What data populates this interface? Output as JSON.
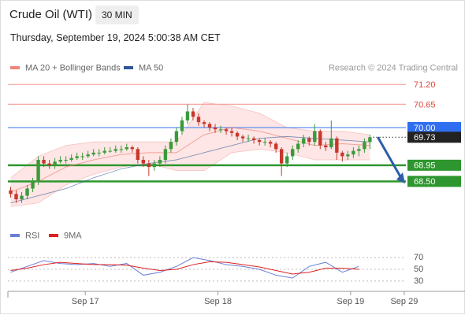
{
  "header": {
    "title": "Crude Oil (WTI)",
    "timeframe": "30 MIN",
    "datetime": "Thursday, September 19, 2024 5:00:38 AM CET"
  },
  "chart_data": [
    {
      "type": "candlestick",
      "watermark": "Research © 2024 Trading Central",
      "up_color": "#3a9a3a",
      "down_color": "#c8372c",
      "candles": {
        "open": [
          68.25,
          68.15,
          68.0,
          68.1,
          68.3,
          68.5,
          69.1,
          69.0,
          68.95,
          69.05,
          69.1,
          69.1,
          69.15,
          69.2,
          69.2,
          69.25,
          69.3,
          69.3,
          69.35,
          69.35,
          69.4,
          69.4,
          69.45,
          69.4,
          69.1,
          69.0,
          68.9,
          69.0,
          69.1,
          69.4,
          69.6,
          69.9,
          70.2,
          70.45,
          70.3,
          70.15,
          70.1,
          70.0,
          69.95,
          69.95,
          69.9,
          69.85,
          69.75,
          69.7,
          69.7,
          69.65,
          69.6,
          69.6,
          69.55,
          69.4,
          69.0,
          69.2,
          69.4,
          69.55,
          69.7,
          69.6,
          69.9,
          69.5,
          69.45,
          69.7,
          69.3,
          69.2,
          69.25,
          69.35,
          69.4,
          69.6
        ],
        "high": [
          68.35,
          68.25,
          68.2,
          68.4,
          68.6,
          69.2,
          69.2,
          69.1,
          69.15,
          69.2,
          69.2,
          69.25,
          69.3,
          69.3,
          69.35,
          69.4,
          69.4,
          69.45,
          69.45,
          69.5,
          69.5,
          69.55,
          69.5,
          69.45,
          69.2,
          69.1,
          69.1,
          69.2,
          69.5,
          69.7,
          70.0,
          70.3,
          70.65,
          70.55,
          70.4,
          70.2,
          70.15,
          70.1,
          70.05,
          70.0,
          70.0,
          69.9,
          69.8,
          69.8,
          69.75,
          69.7,
          69.7,
          69.65,
          69.6,
          69.45,
          69.3,
          69.5,
          69.65,
          69.8,
          69.75,
          70.1,
          69.95,
          69.6,
          70.2,
          69.75,
          69.35,
          69.35,
          69.45,
          69.5,
          69.7,
          69.8
        ],
        "low": [
          68.05,
          67.9,
          67.9,
          68.0,
          68.2,
          68.4,
          68.9,
          68.85,
          68.85,
          69.0,
          69.0,
          69.05,
          69.1,
          69.1,
          69.15,
          69.2,
          69.2,
          69.25,
          69.3,
          69.3,
          69.3,
          69.35,
          69.3,
          69.0,
          68.9,
          68.65,
          68.8,
          68.9,
          69.0,
          69.3,
          69.5,
          69.8,
          70.1,
          70.2,
          70.05,
          70.0,
          69.9,
          69.85,
          69.85,
          69.8,
          69.75,
          69.65,
          69.6,
          69.6,
          69.55,
          69.5,
          69.5,
          69.45,
          69.3,
          68.65,
          68.9,
          69.1,
          69.3,
          69.45,
          69.5,
          69.5,
          69.4,
          69.35,
          69.4,
          69.1,
          69.05,
          69.1,
          69.15,
          69.2,
          69.3,
          69.4
        ],
        "close": [
          68.15,
          68.0,
          68.1,
          68.3,
          68.5,
          69.1,
          69.0,
          68.95,
          69.05,
          69.1,
          69.1,
          69.15,
          69.2,
          69.2,
          69.25,
          69.3,
          69.3,
          69.35,
          69.35,
          69.4,
          69.4,
          69.45,
          69.4,
          69.1,
          69.0,
          68.9,
          69.0,
          69.1,
          69.4,
          69.6,
          69.9,
          70.2,
          70.45,
          70.3,
          70.15,
          70.1,
          70.0,
          69.95,
          69.95,
          69.9,
          69.85,
          69.75,
          69.7,
          69.7,
          69.65,
          69.6,
          69.6,
          69.55,
          69.4,
          69.0,
          69.2,
          69.4,
          69.55,
          69.7,
          69.6,
          69.9,
          69.5,
          69.45,
          69.7,
          69.3,
          69.2,
          69.25,
          69.35,
          69.4,
          69.6,
          69.73
        ]
      },
      "ma_x": [
        0,
        5,
        10,
        15,
        20,
        25,
        30,
        35,
        40,
        45,
        50,
        55,
        60,
        65
      ],
      "series": [
        {
          "name": "MA 20 + Bollinger Bands",
          "color": "#f0857c",
          "values": [
            68.2,
            68.5,
            68.9,
            69.1,
            69.25,
            69.3,
            69.3,
            69.8,
            70.0,
            69.9,
            69.7,
            69.5,
            69.55,
            69.5
          ]
        },
        {
          "name": "MA 50",
          "color": "#2f5597",
          "values": [
            67.9,
            68.1,
            68.3,
            68.6,
            68.85,
            69.0,
            69.1,
            69.3,
            69.5,
            69.7,
            69.75,
            69.7,
            69.65,
            69.6
          ]
        }
      ],
      "bands": {
        "color": "#fde0de",
        "upper": [
          68.6,
          69.2,
          69.5,
          69.6,
          69.6,
          69.6,
          69.6,
          70.7,
          70.6,
          70.4,
          70.0,
          69.9,
          69.9,
          69.8
        ],
        "lower": [
          67.8,
          67.9,
          68.4,
          68.7,
          68.9,
          69.0,
          68.8,
          68.8,
          69.3,
          69.4,
          69.3,
          69.1,
          69.1,
          69.1
        ]
      },
      "levels": [
        {
          "value": 71.2,
          "label": "71.20",
          "color": "#f5a5a0",
          "text_color": "#e0443a"
        },
        {
          "value": 70.65,
          "label": 70.65,
          "color": "#f5a5a0",
          "text_color": "#e0443a"
        },
        {
          "value": 70,
          "label": "70.00",
          "color": "#5b8ff0",
          "bg": "#2f6ef0",
          "text_color": "#ffffff"
        },
        {
          "value": 68.95,
          "label": 68.95,
          "color": "#2e962e",
          "bg": "#2e962e",
          "text_color": "#ffffff"
        },
        {
          "value": 68.5,
          "label": "68.50",
          "color": "#2e962e",
          "bg": "#2e962e",
          "text_color": "#ffffff"
        }
      ],
      "last_price": {
        "value": 69.73,
        "label": 69.73,
        "bg": "#222222"
      },
      "ylim": [
        67.3,
        71.47
      ],
      "xlim": [
        -0.5,
        71.5
      ],
      "xticks": [
        {
          "value": 13.5,
          "label": "Sep 17"
        },
        {
          "value": 37.5,
          "label": "Sep 18"
        },
        {
          "value": 61.5,
          "label": "Sep 19"
        },
        {
          "value": 71.2,
          "label": "Sep 29"
        }
      ]
    },
    {
      "type": "line",
      "x": [
        0,
        3,
        6,
        9,
        12,
        15,
        18,
        21,
        24,
        27,
        30,
        33,
        36,
        39,
        42,
        45,
        48,
        51,
        54,
        57,
        60,
        63
      ],
      "series": [
        {
          "name": "RSI",
          "color": "#6b7fd7",
          "values": [
            45,
            55,
            65,
            60,
            58,
            60,
            55,
            60,
            40,
            45,
            55,
            70,
            65,
            58,
            55,
            50,
            40,
            35,
            55,
            62,
            45,
            55
          ]
        },
        {
          "name": "9MA",
          "color": "#e02020",
          "values": [
            48,
            52,
            58,
            62,
            60,
            58,
            58,
            57,
            52,
            48,
            50,
            58,
            63,
            62,
            58,
            54,
            48,
            42,
            45,
            52,
            52,
            50
          ]
        }
      ],
      "ylim": [
        15,
        85
      ],
      "yticks": [
        30,
        50,
        70
      ],
      "xlim": [
        -0.5,
        71.5
      ]
    }
  ]
}
